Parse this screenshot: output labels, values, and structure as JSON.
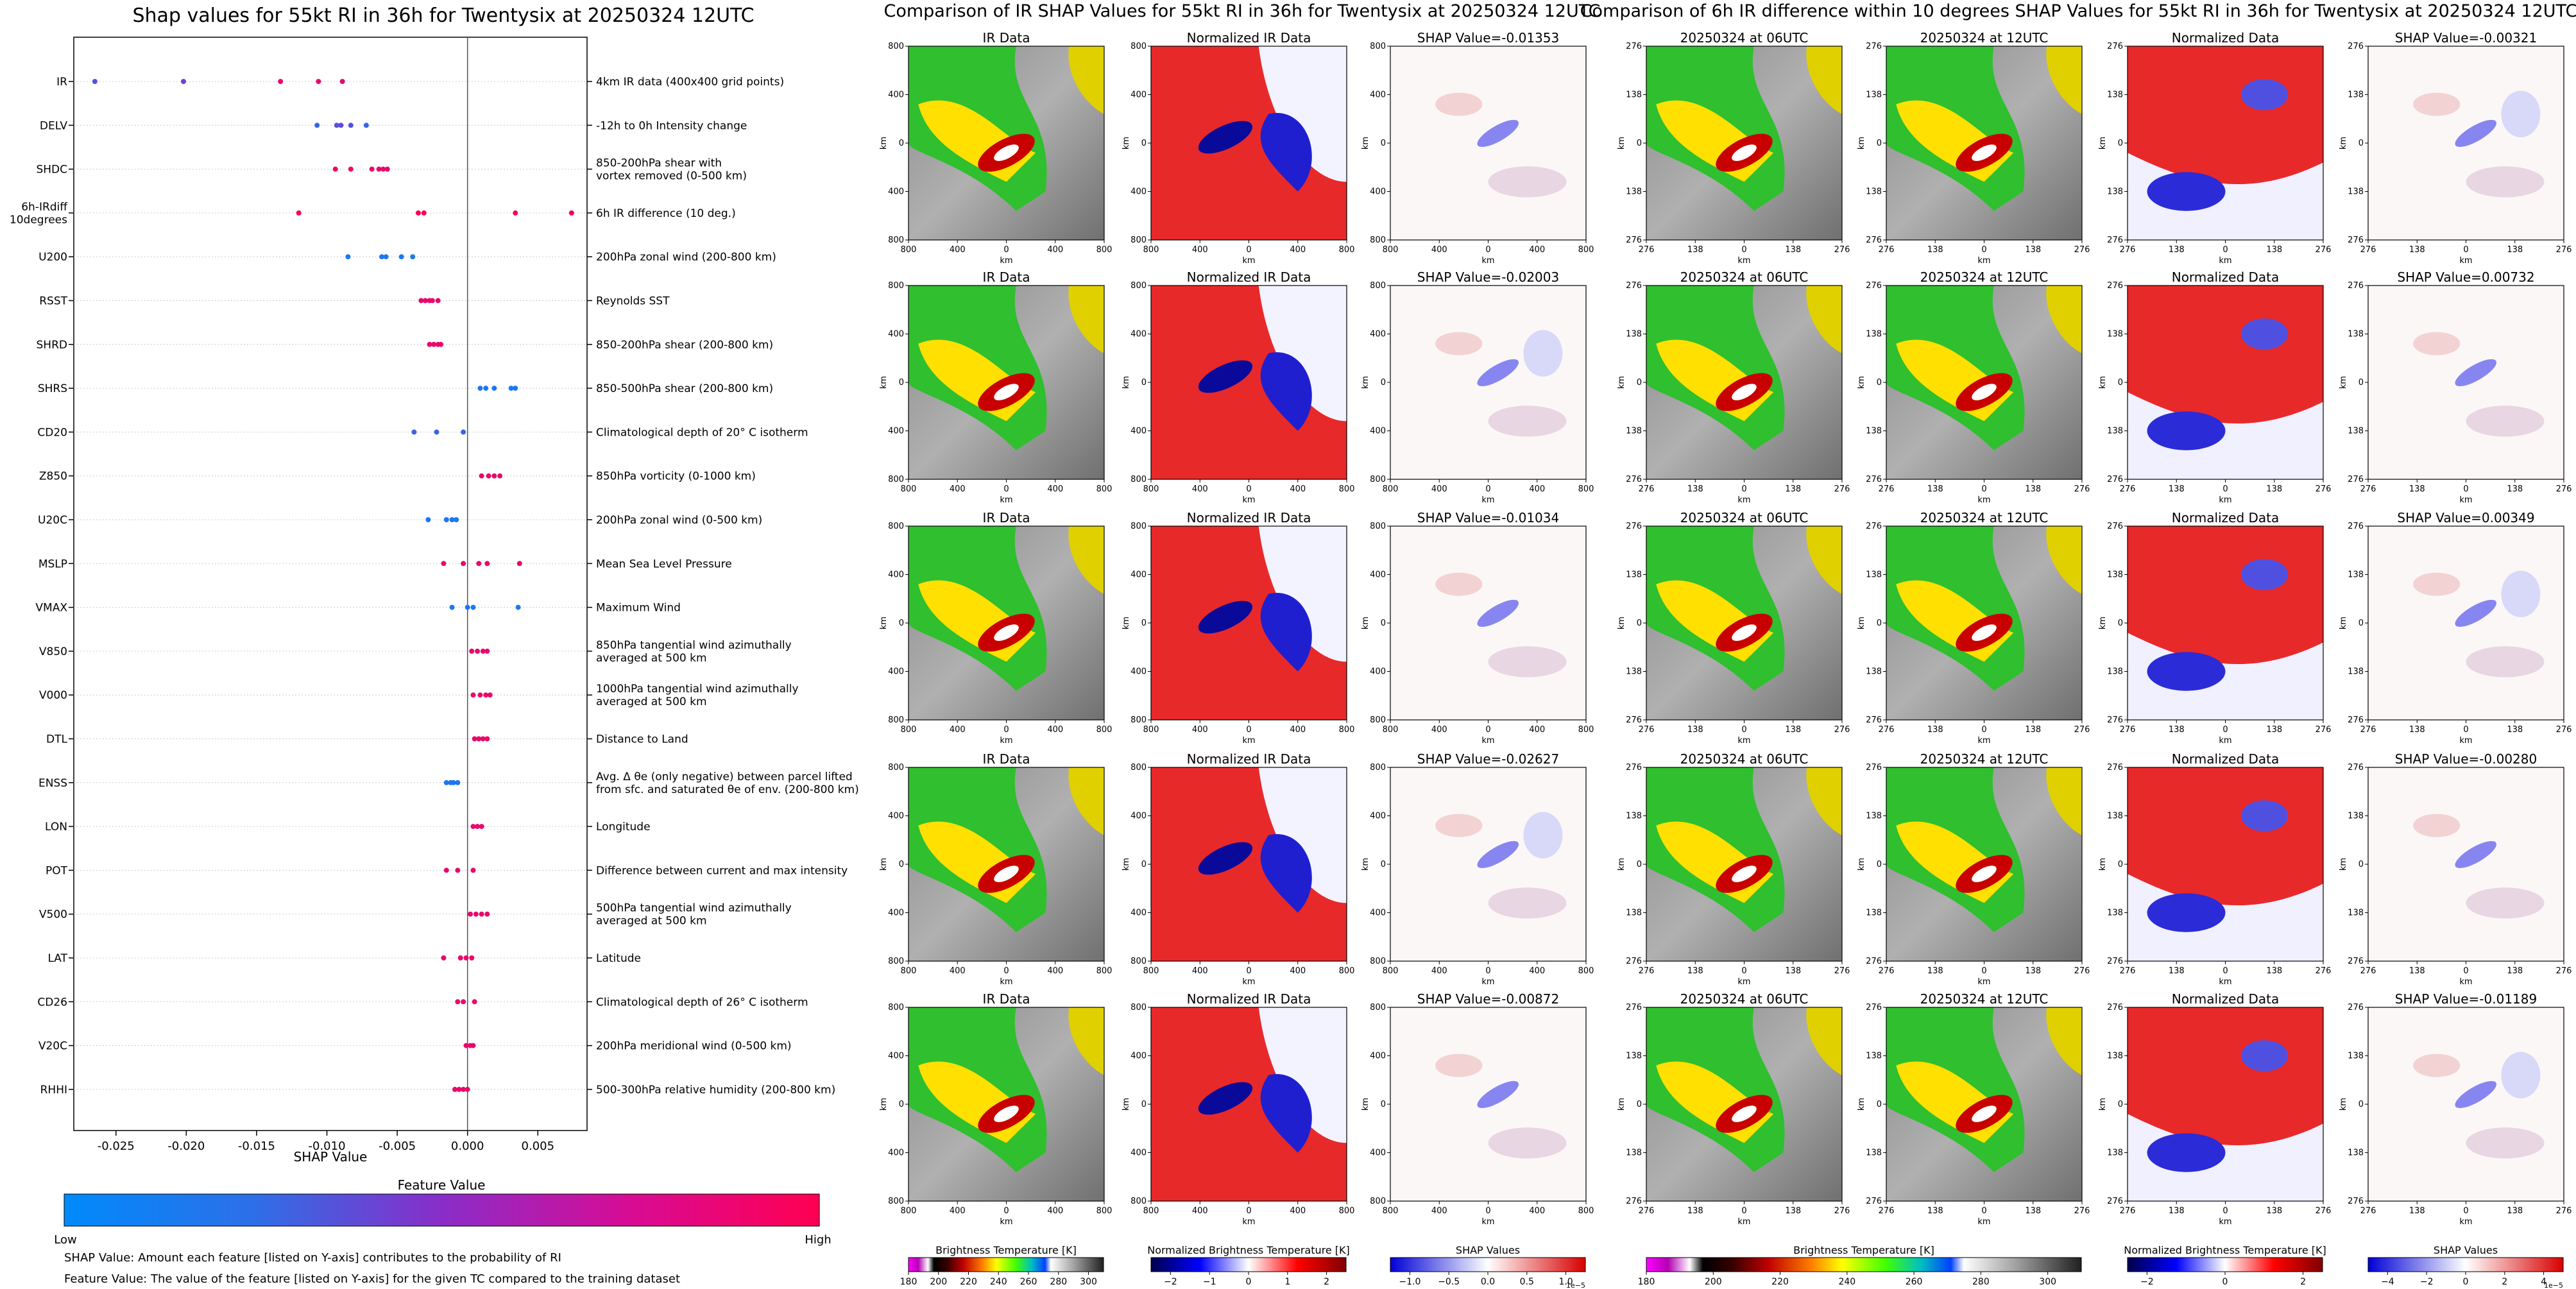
{
  "figure": {
    "shap_title": "Shap values for 55kt RI in 36h for Twentysix at 20250324 12UTC",
    "ir_title": "Comparison of IR SHAP Values for 55kt RI in 36h for Twentysix at 20250324 12UTC",
    "diff_title": "Comparison of 6h IR difference within 10 degrees SHAP Values for 55kt RI in 36h for Twentysix at 20250324 12UTC"
  },
  "chart_data": [
    {
      "type": "scatter",
      "title": "Shap values for 55kt RI in 36h for Twentysix at 20250324 12UTC",
      "xlabel": "SHAP Value",
      "xlim": [
        -0.028,
        0.0085
      ],
      "xticks": [
        "-0.025",
        "-0.020",
        "-0.015",
        "-0.010",
        "-0.005",
        "0.000",
        "0.005"
      ],
      "xtick_values": [
        -0.025,
        -0.02,
        -0.015,
        -0.01,
        -0.005,
        0.0,
        0.005
      ],
      "colorbar": {
        "label": "Feature Value",
        "low": "Low",
        "high": "High",
        "colors": [
          "#1e88e5",
          "#7b35c4",
          "#ff0052"
        ]
      },
      "notes": [
        "SHAP Value: Amount each feature [listed on Y-axis] contributes to the probability of RI",
        "Feature Value: The value of the feature [listed on Y-axis] for the given TC compared to the training dataset"
      ],
      "features": [
        {
          "name": "IR",
          "desc": "4km IR data (400x400 grid points)",
          "points": [
            [
              -0.0265,
              0.3
            ],
            [
              -0.0202,
              0.4
            ],
            [
              -0.0133,
              0.9
            ],
            [
              -0.0106,
              0.9
            ],
            [
              -0.0089,
              0.85
            ]
          ]
        },
        {
          "name": "DELV",
          "desc": "-12h to 0h Intensity change",
          "points": [
            [
              -0.0107,
              0.2
            ],
            [
              -0.0093,
              0.3
            ],
            [
              -0.009,
              0.35
            ],
            [
              -0.0083,
              0.3
            ],
            [
              -0.0072,
              0.2
            ]
          ]
        },
        {
          "name": "SHDC",
          "desc": "850-200hPa shear with\nvortex removed (0-500 km)",
          "points": [
            [
              -0.0094,
              0.95
            ],
            [
              -0.0083,
              0.95
            ],
            [
              -0.0068,
              0.9
            ],
            [
              -0.0063,
              0.9
            ],
            [
              -0.006,
              0.9
            ],
            [
              -0.0057,
              0.9
            ]
          ]
        },
        {
          "name": "6h-IRdiff\n10degrees",
          "desc": "6h IR difference (10 deg.)",
          "points": [
            [
              -0.012,
              1
            ],
            [
              -0.0035,
              1
            ],
            [
              -0.0031,
              1
            ],
            [
              0.0034,
              1
            ],
            [
              0.0074,
              1
            ]
          ]
        },
        {
          "name": "U200",
          "desc": "200hPa zonal wind (200-800 km)",
          "points": [
            [
              -0.0085,
              0.1
            ],
            [
              -0.0061,
              0.1
            ],
            [
              -0.0058,
              0.1
            ],
            [
              -0.0047,
              0.1
            ],
            [
              -0.0039,
              0.1
            ]
          ]
        },
        {
          "name": "RSST",
          "desc": "Reynolds SST",
          "points": [
            [
              -0.0033,
              0.9
            ],
            [
              -0.003,
              0.9
            ],
            [
              -0.0027,
              0.9
            ],
            [
              -0.0025,
              0.9
            ],
            [
              -0.0021,
              0.9
            ]
          ]
        },
        {
          "name": "SHRD",
          "desc": "850-200hPa shear (200-800 km)",
          "points": [
            [
              -0.0027,
              0.9
            ],
            [
              -0.0024,
              0.9
            ],
            [
              -0.0021,
              0.9
            ],
            [
              -0.0019,
              0.9
            ]
          ]
        },
        {
          "name": "SHRS",
          "desc": "850-500hPa shear (200-800 km)",
          "points": [
            [
              0.0009,
              0.1
            ],
            [
              0.0013,
              0.1
            ],
            [
              0.0019,
              0.1
            ],
            [
              0.0031,
              0.1
            ],
            [
              0.0034,
              0.1
            ]
          ]
        },
        {
          "name": "CD20",
          "desc": "Climatological depth of 20° C isotherm",
          "points": [
            [
              -0.0038,
              0.2
            ],
            [
              -0.0022,
              0.2
            ],
            [
              -0.0003,
              0.2
            ]
          ]
        },
        {
          "name": "Z850",
          "desc": "850hPa vorticity (0-1000 km)",
          "points": [
            [
              0.001,
              0.9
            ],
            [
              0.0015,
              0.9
            ],
            [
              0.0019,
              0.9
            ],
            [
              0.0023,
              0.9
            ]
          ]
        },
        {
          "name": "U20C",
          "desc": "200hPa zonal wind (0-500 km)",
          "points": [
            [
              -0.0028,
              0.1
            ],
            [
              -0.0015,
              0.1
            ],
            [
              -0.0011,
              0.1
            ],
            [
              -0.0008,
              0.1
            ]
          ]
        },
        {
          "name": "MSLP",
          "desc": "Mean Sea Level Pressure",
          "points": [
            [
              -0.0017,
              0.9
            ],
            [
              -0.0003,
              0.9
            ],
            [
              0.0008,
              0.9
            ],
            [
              0.0014,
              0.9
            ],
            [
              0.0037,
              0.9
            ]
          ]
        },
        {
          "name": "VMAX",
          "desc": "Maximum Wind",
          "points": [
            [
              -0.0011,
              0.1
            ],
            [
              0,
              0.1
            ],
            [
              0.0004,
              0.1
            ],
            [
              0.0036,
              0.1
            ]
          ]
        },
        {
          "name": "V850",
          "desc": "850hPa tangential wind azimuthally\naveraged at 500 km",
          "points": [
            [
              0.0003,
              0.9
            ],
            [
              0.0007,
              0.9
            ],
            [
              0.0011,
              0.9
            ],
            [
              0.0014,
              0.9
            ]
          ]
        },
        {
          "name": "V000",
          "desc": "1000hPa tangential wind azimuthally\naveraged at 500 km",
          "points": [
            [
              0.0004,
              0.9
            ],
            [
              0.0009,
              0.9
            ],
            [
              0.0013,
              0.9
            ],
            [
              0.0016,
              0.9
            ]
          ]
        },
        {
          "name": "DTL",
          "desc": "Distance to Land",
          "points": [
            [
              0.0005,
              0.9
            ],
            [
              0.0008,
              0.9
            ],
            [
              0.0011,
              0.9
            ],
            [
              0.0014,
              0.9
            ]
          ]
        },
        {
          "name": "ENSS",
          "desc": "Avg. Δ θe (only negative) between parcel lifted\nfrom sfc. and saturated θe of env. (200-800 km)",
          "points": [
            [
              -0.0015,
              0.1
            ],
            [
              -0.0012,
              0.1
            ],
            [
              -0.001,
              0.1
            ],
            [
              -0.0007,
              0.1
            ]
          ]
        },
        {
          "name": "LON",
          "desc": "Longitude",
          "points": [
            [
              0.0004,
              0.9
            ],
            [
              0.0007,
              0.9
            ],
            [
              0.001,
              0.9
            ]
          ]
        },
        {
          "name": "POT",
          "desc": "Difference between current and max intensity",
          "points": [
            [
              -0.0015,
              0.9
            ],
            [
              -0.0007,
              0.9
            ],
            [
              0.0004,
              0.9
            ]
          ]
        },
        {
          "name": "V500",
          "desc": "500hPa tangential wind azimuthally\naveraged at 500 km",
          "points": [
            [
              0.0002,
              0.9
            ],
            [
              0.0006,
              0.9
            ],
            [
              0.001,
              0.9
            ],
            [
              0.0014,
              0.9
            ]
          ]
        },
        {
          "name": "LAT",
          "desc": "Latitude",
          "points": [
            [
              -0.0017,
              0.9
            ],
            [
              -0.0005,
              0.9
            ],
            [
              -0.0001,
              0.9
            ],
            [
              0.0003,
              0.9
            ]
          ]
        },
        {
          "name": "CD26",
          "desc": "Climatological depth of 26° C isotherm",
          "points": [
            [
              -0.0007,
              0.9
            ],
            [
              -0.0003,
              0.9
            ],
            [
              0.0005,
              0.9
            ]
          ]
        },
        {
          "name": "V20C",
          "desc": "200hPa meridional wind (0-500 km)",
          "points": [
            [
              -0.0001,
              0.9
            ],
            [
              0.0002,
              0.9
            ],
            [
              0.0004,
              0.9
            ]
          ]
        },
        {
          "name": "RHHI",
          "desc": "500-300hPa relative humidity (200-800 km)",
          "points": [
            [
              -0.0009,
              0.9
            ],
            [
              -0.0006,
              0.9
            ],
            [
              -0.0003,
              0.9
            ],
            [
              0,
              0.9
            ]
          ]
        }
      ]
    },
    {
      "type": "heatmap",
      "title": "Comparison of IR SHAP Values for 55kt RI in 36h for Twentysix at 20250324 12UTC",
      "columns": [
        "IR Data",
        "Normalized IR Data"
      ],
      "shap_titles": [
        "SHAP Value=-0.01353",
        "SHAP Value=-0.02003",
        "SHAP Value=-0.01034",
        "SHAP Value=-0.02627",
        "SHAP Value=-0.00872"
      ],
      "axis_label": "km",
      "xticks": [
        "800",
        "400",
        "0",
        "400",
        "800"
      ],
      "yticks": [
        "800",
        "400",
        "0",
        "400",
        "800"
      ],
      "colorbars": [
        {
          "label": "Brightness Temperature [K]",
          "ticks": [
            "180",
            "200",
            "220",
            "240",
            "260",
            "280",
            "300"
          ]
        },
        {
          "label": "Normalized Brightness Temperature [K]",
          "ticks": [
            "−2",
            "−1",
            "0",
            "1",
            "2"
          ]
        },
        {
          "label": "SHAP Values",
          "ticks": [
            "−1.0",
            "−0.5",
            "0.0",
            "0.5",
            "1.0"
          ],
          "offset": "1e−5"
        }
      ]
    },
    {
      "type": "heatmap",
      "title": "Comparison of 6h IR difference within 10 degrees SHAP Values for 55kt RI in 36h for Twentysix at 20250324 12UTC",
      "columns": [
        "20250324 at 06UTC",
        "20250324 at 12UTC",
        "Normalized Data"
      ],
      "shap_titles": [
        "SHAP Value=-0.00321",
        "SHAP Value=0.00732",
        "SHAP Value=0.00349",
        "SHAP Value=-0.00280",
        "SHAP Value=-0.01189"
      ],
      "axis_label": "km",
      "xticks": [
        "276",
        "138",
        "0",
        "138",
        "276"
      ],
      "yticks": [
        "276",
        "138",
        "0",
        "138",
        "276"
      ],
      "colorbars": [
        {
          "label": "Brightness Temperature [K]",
          "ticks": [
            "180",
            "200",
            "220",
            "240",
            "260",
            "280",
            "300"
          ]
        },
        {
          "label": "Normalized Brightness Temperature [K]",
          "ticks": [
            "−2",
            "0",
            "2"
          ]
        },
        {
          "label": "SHAP Values",
          "ticks": [
            "−4",
            "−2",
            "0",
            "2",
            "4"
          ],
          "offset": "1e−5"
        }
      ]
    }
  ]
}
